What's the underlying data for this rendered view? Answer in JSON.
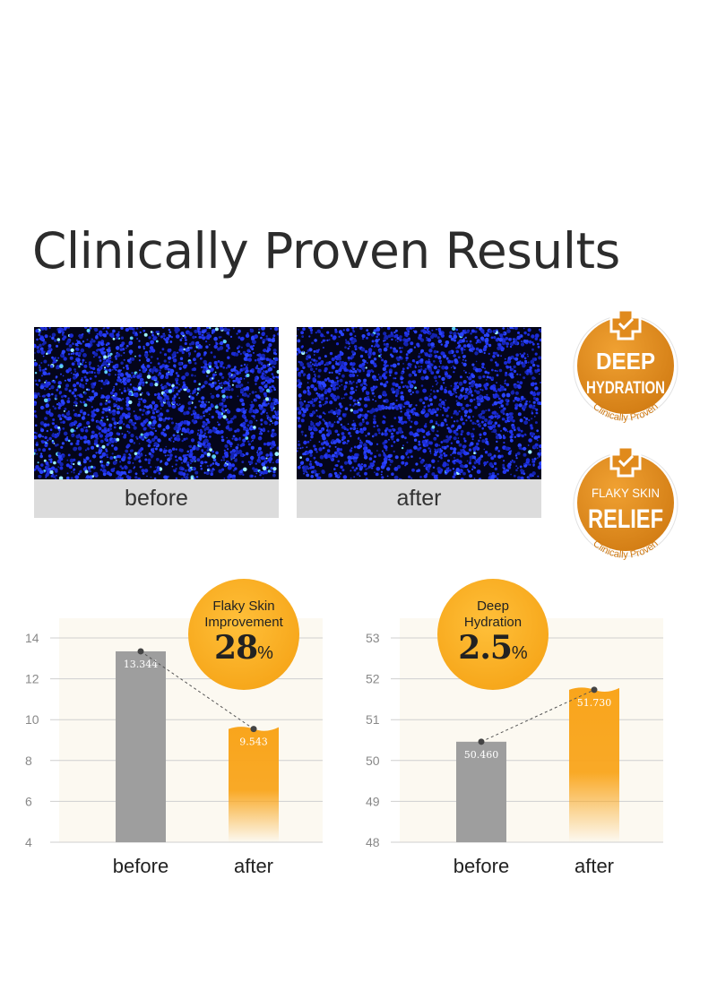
{
  "page": {
    "title": "Clinically Proven Results"
  },
  "micrographs": [
    {
      "caption": "before"
    },
    {
      "caption": "after"
    }
  ],
  "badges": [
    {
      "line1": "DEEP",
      "line2": "HYDRATION",
      "ring": "Clinically Proven",
      "color": "#e08a1c"
    },
    {
      "line1": "FLAKY SKIN",
      "line2": "RELIEF",
      "ring": "Clinically Proven",
      "color": "#e08a1c"
    }
  ],
  "bubbles": [
    {
      "label": [
        "Flaky Skin",
        "Improvement"
      ],
      "value": "28",
      "unit": "%"
    },
    {
      "label": [
        "Deep",
        "Hydration"
      ],
      "value": "2.5",
      "unit": "%"
    }
  ],
  "colors": {
    "accent": "#f7a81c",
    "bar_before": "#9e9e9e",
    "bar_after": "#f9a51c",
    "panel_bg": "#fcf9f1"
  },
  "chart_data": [
    {
      "type": "bar",
      "categories": [
        "before",
        "after"
      ],
      "values": [
        13.344,
        9.543
      ],
      "value_labels": [
        "13.344",
        "9.543"
      ],
      "ylim": [
        4,
        14
      ],
      "yticks": [
        "4",
        "6",
        "8",
        "10",
        "12",
        "14"
      ],
      "grid": true
    },
    {
      "type": "bar",
      "categories": [
        "before",
        "after"
      ],
      "values": [
        50.46,
        51.73
      ],
      "value_labels": [
        "50.460",
        "51.730"
      ],
      "ylim": [
        48,
        53
      ],
      "yticks": [
        "48",
        "49",
        "50",
        "51",
        "52",
        "53"
      ],
      "grid": true
    }
  ]
}
